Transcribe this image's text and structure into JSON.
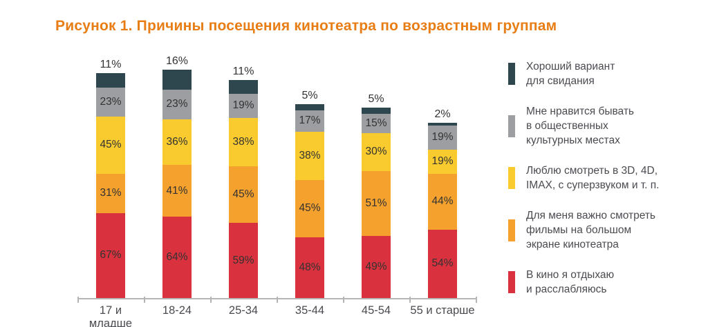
{
  "title": "Рисунок 1. Причины посещения кинотеатра по возрастным группам",
  "colors": {
    "title": "#e87d15",
    "axis": "#b3b5b7",
    "category_text": "#4a4b50",
    "value_text": "#323232",
    "legend_text": "#4a4b50"
  },
  "chart_data": {
    "type": "bar",
    "stacked": true,
    "title": "Рисунок 1. Причины посещения кинотеатра по возрастным группам",
    "categories": [
      "17 и младше",
      "18-24",
      "25-34",
      "35-44",
      "45-54",
      "55 и старше"
    ],
    "series": [
      {
        "name": "В кино я отдыхаю и расслабляюсь",
        "color": "#d9323e",
        "values": [
          67,
          64,
          59,
          48,
          49,
          54
        ]
      },
      {
        "name": "Для меня важно смотреть фильмы на большом экране кинотеатра",
        "color": "#f5a12d",
        "values": [
          31,
          41,
          45,
          45,
          51,
          44
        ]
      },
      {
        "name": "Люблю смотреть в 3D, 4D, IMAX, с суперзвуком и т. п.",
        "color": "#f9cb2f",
        "values": [
          45,
          36,
          38,
          38,
          30,
          19
        ]
      },
      {
        "name": "Мне нравится бывать в общественных культурных местах",
        "color": "#9c9ea1",
        "values": [
          23,
          23,
          19,
          17,
          15,
          19
        ]
      },
      {
        "name": "Хороший вариант для свидания",
        "color": "#2e474e",
        "values": [
          11,
          16,
          11,
          5,
          5,
          2
        ],
        "labels_position": "above"
      }
    ],
    "value_suffix": "%",
    "xlabel": "",
    "ylabel": "",
    "ylim": [
      0,
      185
    ],
    "grid": false,
    "legend_position": "right"
  },
  "legend": {
    "items": [
      {
        "label": "Хороший вариант\nдля свидания",
        "color": "#2e474e"
      },
      {
        "label": "Мне нравится бывать\nв общественных\nкультурных местах",
        "color": "#9c9ea1"
      },
      {
        "label": "Люблю смотреть в 3D, 4D,\nIMAX, с суперзвуком и т. п.",
        "color": "#f9cb2f"
      },
      {
        "label": "Для меня важно смотреть\nфильмы на большом\nэкране кинотеатра",
        "color": "#f5a12d"
      },
      {
        "label": "В кино я отдыхаю\nи расслабляюсь",
        "color": "#d9323e"
      }
    ]
  }
}
